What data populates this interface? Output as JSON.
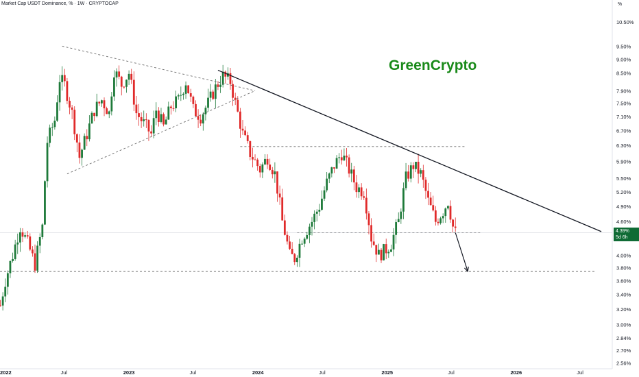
{
  "header": {
    "title": "Market Cap USDT Dominance, % · 1W · CRYPTOCAP",
    "unit": "%"
  },
  "watermark": {
    "text": "GreenCrypto"
  },
  "last_price": {
    "value": "4.39%",
    "countdown": "5d 6h",
    "color": "#0f6b35"
  },
  "colors": {
    "up": "#1e7a3a",
    "down": "#e02a2a",
    "trendline": "#131722",
    "dashed": "#6b6b6b"
  },
  "chart_data": {
    "type": "candlestick",
    "symbol": "USDT Dominance",
    "timeframe": "1W",
    "y_scale": "log",
    "ylim": [
      2.5,
      11.5
    ],
    "y_ticks": [
      "10.50%",
      "9.50%",
      "9.00%",
      "8.50%",
      "7.90%",
      "7.50%",
      "7.10%",
      "6.70%",
      "6.30%",
      "5.90%",
      "5.50%",
      "5.20%",
      "4.90%",
      "4.60%",
      "4.00%",
      "3.80%",
      "3.60%",
      "3.40%",
      "3.20%",
      "3.00%",
      "2.84%",
      "2.70%",
      "2.56%"
    ],
    "x_ticks": [
      "2022",
      "Jul",
      "2023",
      "Jul",
      "2024",
      "Jul",
      "2025",
      "Jul",
      "2026",
      "Jul"
    ],
    "bold_x_ticks": [
      "2022",
      "2023",
      "2024",
      "2025",
      "2026"
    ],
    "x_range": [
      "2022-01-01",
      "2026-09-30"
    ],
    "tick_dates": [
      "2022-01-01",
      "2022-07-01",
      "2023-01-01",
      "2023-07-01",
      "2024-01-01",
      "2024-07-01",
      "2025-01-01",
      "2025-07-01",
      "2026-01-01",
      "2026-07-01"
    ],
    "closes": [
      {
        "date": "2022-01-02",
        "close": 3.25
      },
      {
        "date": "2022-01-16",
        "close": 3.6
      },
      {
        "date": "2022-02-06",
        "close": 4.0
      },
      {
        "date": "2022-02-27",
        "close": 4.5
      },
      {
        "date": "2022-03-20",
        "close": 4.2
      },
      {
        "date": "2022-04-10",
        "close": 3.85
      },
      {
        "date": "2022-05-01",
        "close": 4.5
      },
      {
        "date": "2022-05-15",
        "close": 6.4
      },
      {
        "date": "2022-06-05",
        "close": 7.0
      },
      {
        "date": "2022-06-19",
        "close": 8.3
      },
      {
        "date": "2022-07-03",
        "close": 8.1
      },
      {
        "date": "2022-07-24",
        "close": 7.2
      },
      {
        "date": "2022-08-14",
        "close": 6.0
      },
      {
        "date": "2022-09-04",
        "close": 6.6
      },
      {
        "date": "2022-09-25",
        "close": 7.3
      },
      {
        "date": "2022-10-16",
        "close": 7.6
      },
      {
        "date": "2022-11-06",
        "close": 7.2
      },
      {
        "date": "2022-11-20",
        "close": 8.6
      },
      {
        "date": "2022-12-11",
        "close": 8.1
      },
      {
        "date": "2023-01-01",
        "close": 8.5
      },
      {
        "date": "2023-01-22",
        "close": 7.2
      },
      {
        "date": "2023-02-12",
        "close": 6.9
      },
      {
        "date": "2023-03-05",
        "close": 6.6
      },
      {
        "date": "2023-03-19",
        "close": 7.3
      },
      {
        "date": "2023-04-09",
        "close": 6.8
      },
      {
        "date": "2023-04-30",
        "close": 7.4
      },
      {
        "date": "2023-05-21",
        "close": 7.6
      },
      {
        "date": "2023-06-11",
        "close": 8.2
      },
      {
        "date": "2023-07-02",
        "close": 7.3
      },
      {
        "date": "2023-07-23",
        "close": 7.1
      },
      {
        "date": "2023-08-13",
        "close": 7.5
      },
      {
        "date": "2023-09-03",
        "close": 8.0
      },
      {
        "date": "2023-09-24",
        "close": 8.4
      },
      {
        "date": "2023-10-15",
        "close": 8.2
      },
      {
        "date": "2023-10-29",
        "close": 7.5
      },
      {
        "date": "2023-11-19",
        "close": 6.6
      },
      {
        "date": "2023-12-10",
        "close": 6.1
      },
      {
        "date": "2024-01-07",
        "close": 5.7
      },
      {
        "date": "2024-01-28",
        "close": 6.0
      },
      {
        "date": "2024-02-18",
        "close": 5.6
      },
      {
        "date": "2024-03-10",
        "close": 4.6
      },
      {
        "date": "2024-03-31",
        "close": 4.0
      },
      {
        "date": "2024-04-14",
        "close": 3.95
      },
      {
        "date": "2024-05-05",
        "close": 4.3
      },
      {
        "date": "2024-06-02",
        "close": 4.6
      },
      {
        "date": "2024-06-23",
        "close": 4.9
      },
      {
        "date": "2024-07-14",
        "close": 5.4
      },
      {
        "date": "2024-08-04",
        "close": 5.8
      },
      {
        "date": "2024-08-25",
        "close": 6.1
      },
      {
        "date": "2024-09-15",
        "close": 5.7
      },
      {
        "date": "2024-10-06",
        "close": 5.3
      },
      {
        "date": "2024-10-27",
        "close": 5.2
      },
      {
        "date": "2024-11-17",
        "close": 4.3
      },
      {
        "date": "2024-12-08",
        "close": 4.0
      },
      {
        "date": "2024-12-29",
        "close": 4.1
      },
      {
        "date": "2025-01-12",
        "close": 4.2
      },
      {
        "date": "2025-02-02",
        "close": 4.6
      },
      {
        "date": "2025-02-23",
        "close": 5.5
      },
      {
        "date": "2025-03-16",
        "close": 5.8
      },
      {
        "date": "2025-04-06",
        "close": 5.6
      },
      {
        "date": "2025-04-27",
        "close": 5.0
      },
      {
        "date": "2025-05-18",
        "close": 4.6
      },
      {
        "date": "2025-06-08",
        "close": 4.8
      },
      {
        "date": "2025-06-22",
        "close": 5.0
      },
      {
        "date": "2025-07-06",
        "close": 4.5
      },
      {
        "date": "2025-07-13",
        "close": 4.39
      }
    ],
    "annotations": {
      "trendline_text": "",
      "support_level": 3.74,
      "resistance_level": 6.27,
      "mid_level": 4.39,
      "projection_target": 3.74
    }
  }
}
